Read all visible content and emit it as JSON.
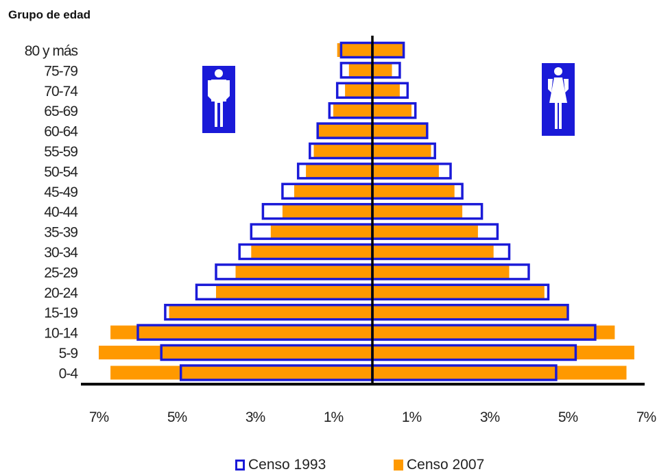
{
  "chart_data": {
    "type": "bar",
    "subtype": "population-pyramid",
    "ylabel": "Grupo de edad",
    "categories": [
      "80 y más",
      "75-79",
      "70-74",
      "65-69",
      "60-64",
      "55-59",
      "50-54",
      "45-49",
      "40-44",
      "35-39",
      "30-34",
      "25-29",
      "20-24",
      "15-19",
      "10-14",
      "5-9",
      "0-4"
    ],
    "x_ticks": [
      "7%",
      "5%",
      "3%",
      "1%",
      "1%",
      "3%",
      "5%",
      "7%"
    ],
    "xlim": [
      -7,
      7
    ],
    "series": [
      {
        "name": "Censo 1993",
        "color": "#1a1ad8",
        "style": "outline",
        "left_values": [
          0.8,
          0.8,
          0.9,
          1.1,
          1.4,
          1.6,
          1.9,
          2.3,
          2.8,
          3.1,
          3.4,
          4.0,
          4.5,
          5.3,
          6.0,
          5.4,
          4.9
        ],
        "right_values": [
          0.8,
          0.7,
          0.9,
          1.1,
          1.4,
          1.6,
          2.0,
          2.3,
          2.8,
          3.2,
          3.5,
          4.0,
          4.5,
          5.0,
          5.7,
          5.2,
          4.7
        ]
      },
      {
        "name": "Censo 2007",
        "color": "#ff9900",
        "style": "filled",
        "left_values": [
          0.9,
          0.6,
          0.7,
          1.0,
          1.4,
          1.5,
          1.7,
          2.0,
          2.3,
          2.6,
          3.1,
          3.5,
          4.0,
          5.2,
          6.7,
          7.0,
          6.7
        ],
        "right_values": [
          0.8,
          0.5,
          0.7,
          1.0,
          1.4,
          1.5,
          1.7,
          2.1,
          2.3,
          2.7,
          3.1,
          3.5,
          4.4,
          5.0,
          6.2,
          6.7,
          6.5
        ]
      }
    ],
    "left_icon": "male-figure-icon",
    "right_icon": "female-figure-icon",
    "icon_bg_color": "#1a1ad8",
    "grid": false,
    "legend_position": "bottom"
  }
}
